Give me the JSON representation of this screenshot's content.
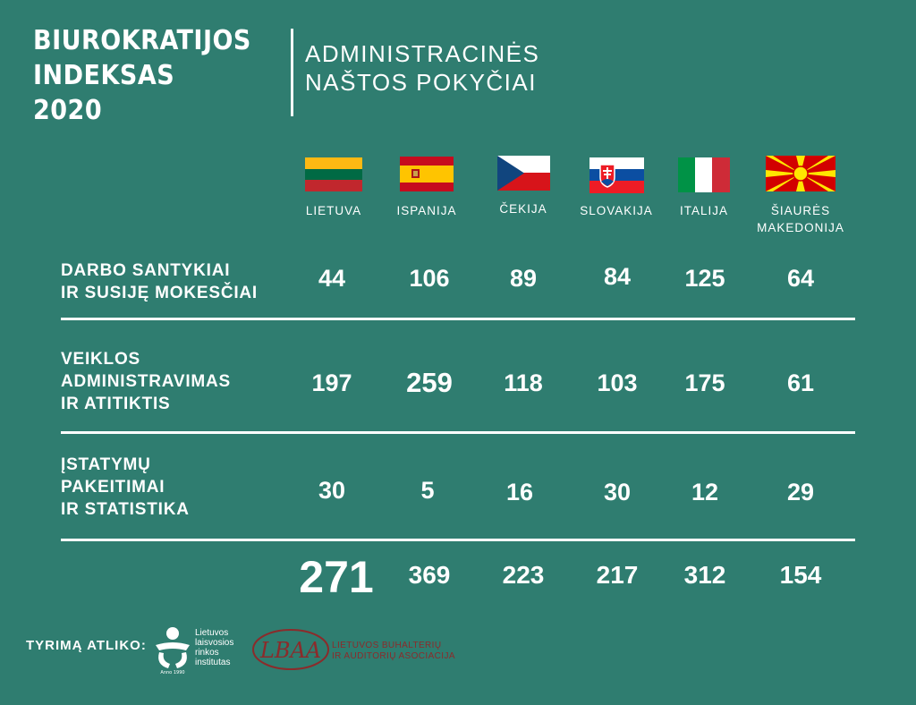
{
  "header": {
    "title": "BIUROKRATIJOS\nINDEKSAS\n2020",
    "subtitle": "ADMINISTRACINĖS\nNAŠTOS POKYČIAI"
  },
  "countries": [
    {
      "label": "LIETUVA",
      "flag": "lithuania-flag"
    },
    {
      "label": "ISPANIJA",
      "flag": "spain-flag"
    },
    {
      "label": "ČEKIJA",
      "flag": "czechia-flag"
    },
    {
      "label": "SLOVAKIJA",
      "flag": "slovakia-flag"
    },
    {
      "label": "ITALIJA",
      "flag": "italy-flag"
    },
    {
      "label": "ŠIAURĖS\nMAKEDONIJA",
      "flag": "north-macedonia-flag"
    }
  ],
  "rows": [
    {
      "label": "DARBO SANTYKIAI\nIR SUSIJĘ MOKESČIAI",
      "values": [
        "44",
        "106",
        "89",
        "84",
        "125",
        "64"
      ]
    },
    {
      "label": "VEIKLOS\nADMINISTRAVIMAS\nIR ATITIKTIS",
      "values": [
        "197",
        "259",
        "118",
        "103",
        "175",
        "61"
      ]
    },
    {
      "label": "ĮSTATYMŲ\nPAKEITIMAI\nIR STATISTIKA",
      "values": [
        "30",
        "5",
        "16",
        "30",
        "12",
        "29"
      ]
    }
  ],
  "totals": [
    "271",
    "369",
    "223",
    "217",
    "312",
    "154"
  ],
  "footer": {
    "label": "TYRIMĄ ATLIKO:",
    "llri": "Lietuvos\nlaisvosios\nrinkos\ninstitutas",
    "llri_logo_text": "Anno 1990",
    "lbaa": "LIETUVOS BUHALTERIŲ\nIR AUDITORIŲ ASOCIACIJA",
    "lbaa_logo_text": "LBAA"
  },
  "colors": {
    "background": "#2f7d70",
    "text": "#ffffff",
    "lbaa": "#8b2b2b"
  }
}
